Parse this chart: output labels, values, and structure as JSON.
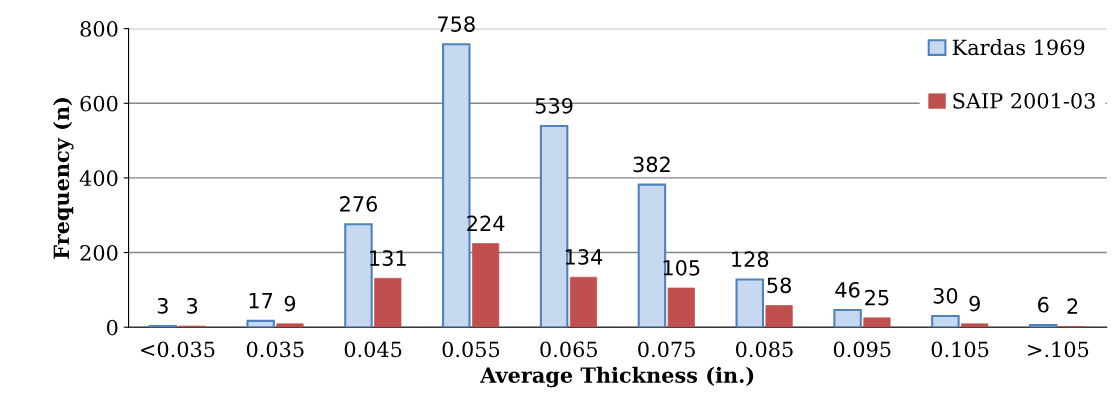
{
  "chart_data": {
    "type": "bar",
    "xlabel": "Average Thickness (in.)",
    "ylabel": "Frequency (n)",
    "categories": [
      "<0.035",
      "0.035",
      "0.045",
      "0.055",
      "0.065",
      "0.075",
      "0.085",
      "0.095",
      "0.105",
      ">.105"
    ],
    "series": [
      {
        "name": "Kardas 1969",
        "color": "#c6d9f1",
        "values": [
          3,
          17,
          276,
          758,
          539,
          382,
          128,
          46,
          30,
          6
        ]
      },
      {
        "name": "SAIP 2001-03",
        "color": "#c0504d",
        "values": [
          3,
          9,
          131,
          224,
          134,
          105,
          58,
          25,
          9,
          2
        ]
      }
    ],
    "ylim": [
      0,
      800
    ],
    "yticks": [
      0,
      200,
      400,
      600,
      800
    ],
    "grid": "y",
    "legend": "top right",
    "data_labels": true
  }
}
